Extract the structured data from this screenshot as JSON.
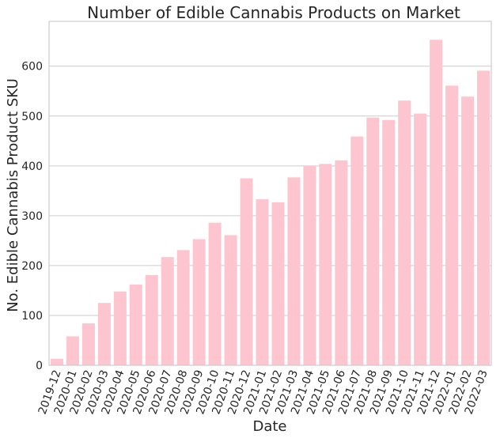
{
  "chart_data": {
    "type": "bar",
    "title": "Number of Edible Cannabis Products on Market",
    "xlabel": "Date",
    "ylabel": "No. Edible Cannabis Product SKU",
    "categories": [
      "2019-12",
      "2020-01",
      "2020-02",
      "2020-03",
      "2020-04",
      "2020-05",
      "2020-06",
      "2020-07",
      "2020-08",
      "2020-09",
      "2020-10",
      "2020-11",
      "2020-12",
      "2021-01",
      "2021-02",
      "2021-03",
      "2021-04",
      "2021-05",
      "2021-06",
      "2021-07",
      "2021-08",
      "2021-09",
      "2021-10",
      "2021-11",
      "2021-12",
      "2022-01",
      "2022-02",
      "2022-03"
    ],
    "values": [
      13,
      58,
      84,
      125,
      148,
      162,
      181,
      217,
      231,
      253,
      286,
      261,
      375,
      333,
      327,
      377,
      400,
      404,
      411,
      459,
      497,
      492,
      531,
      505,
      653,
      561,
      539,
      591
    ],
    "ylim": [
      0,
      690
    ],
    "yticks": [
      0,
      100,
      200,
      300,
      400,
      500,
      600
    ],
    "bar_color": "#fcc5cf",
    "grid": "y",
    "legend": "none"
  }
}
